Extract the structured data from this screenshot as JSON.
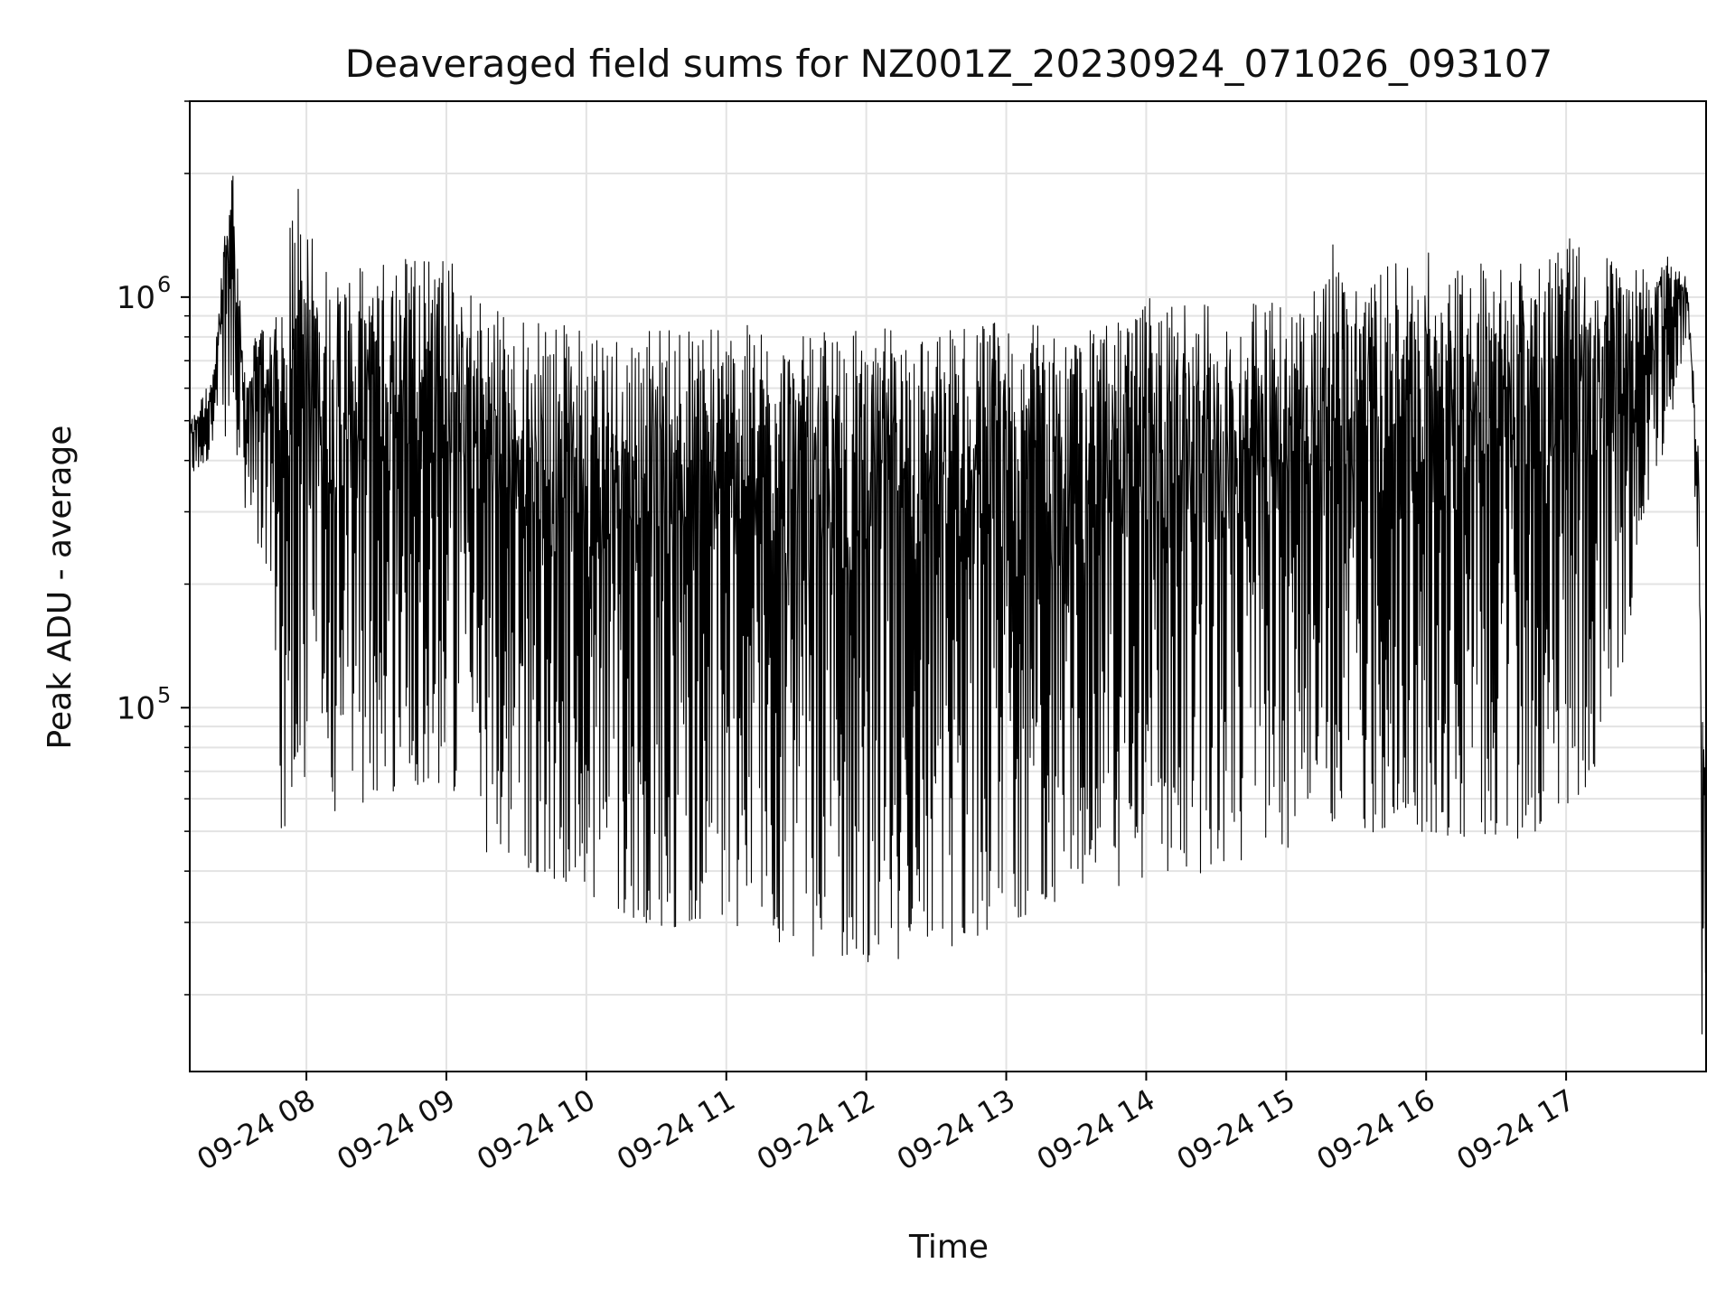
{
  "chart_data": {
    "type": "line",
    "title": "Deaveraged field sums for NZ001Z_20230924_071026_093107",
    "xlabel": "Time",
    "ylabel": "Peak ADU - average",
    "yscale": "log",
    "ylim": [
      13000,
      3000000
    ],
    "xlim": [
      "2023-09-24 07:10",
      "2023-09-24 18:00"
    ],
    "grid": true,
    "line_color": "#000000",
    "grid_color": "#e3e3e3",
    "x_ticks": [
      {
        "value": "2023-09-24 08:00",
        "label": "09-24 08"
      },
      {
        "value": "2023-09-24 09:00",
        "label": "09-24 09"
      },
      {
        "value": "2023-09-24 10:00",
        "label": "09-24 10"
      },
      {
        "value": "2023-09-24 11:00",
        "label": "09-24 11"
      },
      {
        "value": "2023-09-24 12:00",
        "label": "09-24 12"
      },
      {
        "value": "2023-09-24 13:00",
        "label": "09-24 13"
      },
      {
        "value": "2023-09-24 14:00",
        "label": "09-24 14"
      },
      {
        "value": "2023-09-24 15:00",
        "label": "09-24 15"
      },
      {
        "value": "2023-09-24 16:00",
        "label": "09-24 16"
      },
      {
        "value": "2023-09-24 17:00",
        "label": "09-24 17"
      }
    ],
    "y_major_ticks": [
      {
        "value": 100000,
        "base": "10",
        "exp": "5"
      },
      {
        "value": 1000000,
        "base": "10",
        "exp": "6"
      }
    ],
    "y_minor_ticks": [
      20000,
      30000,
      40000,
      50000,
      60000,
      70000,
      80000,
      90000,
      200000,
      300000,
      400000,
      500000,
      600000,
      700000,
      800000,
      900000,
      2000000,
      3000000
    ],
    "series": [
      {
        "envelope": [
          {
            "t": "2023-09-24 07:10",
            "low": 350000,
            "high": 500000
          },
          {
            "t": "2023-09-24 07:20",
            "low": 420000,
            "high": 650000
          },
          {
            "t": "2023-09-24 07:28",
            "low": 480000,
            "high": 2400000
          },
          {
            "t": "2023-09-24 07:33",
            "low": 300000,
            "high": 700000
          },
          {
            "t": "2023-09-24 07:45",
            "low": 200000,
            "high": 950000
          },
          {
            "t": "2023-09-24 07:50",
            "low": 40000,
            "high": 900000
          },
          {
            "t": "2023-09-24 07:55",
            "low": 70000,
            "high": 2100000
          },
          {
            "t": "2023-09-24 08:10",
            "low": 55000,
            "high": 1150000
          },
          {
            "t": "2023-09-24 08:30",
            "low": 60000,
            "high": 1200000
          },
          {
            "t": "2023-09-24 08:45",
            "low": 65000,
            "high": 1350000
          },
          {
            "t": "2023-09-24 09:00",
            "low": 65000,
            "high": 1300000
          },
          {
            "t": "2023-09-24 09:15",
            "low": 45000,
            "high": 1000000
          },
          {
            "t": "2023-09-24 09:30",
            "low": 42000,
            "high": 900000
          },
          {
            "t": "2023-09-24 10:00",
            "low": 35000,
            "high": 850000
          },
          {
            "t": "2023-09-24 10:30",
            "low": 29000,
            "high": 850000
          },
          {
            "t": "2023-09-24 11:00",
            "low": 30000,
            "high": 880000
          },
          {
            "t": "2023-09-24 11:30",
            "low": 25000,
            "high": 800000
          },
          {
            "t": "2023-09-24 12:00",
            "low": 24000,
            "high": 850000
          },
          {
            "t": "2023-09-24 12:30",
            "low": 25000,
            "high": 850000
          },
          {
            "t": "2023-09-24 13:00",
            "low": 30000,
            "high": 900000
          },
          {
            "t": "2023-09-24 13:30",
            "low": 35000,
            "high": 800000
          },
          {
            "t": "2023-09-24 14:00",
            "low": 38000,
            "high": 1000000
          },
          {
            "t": "2023-09-24 14:30",
            "low": 40000,
            "high": 950000
          },
          {
            "t": "2023-09-24 15:00",
            "low": 45000,
            "high": 1000000
          },
          {
            "t": "2023-09-24 15:10",
            "low": 55000,
            "high": 1050000
          },
          {
            "t": "2023-09-24 15:20",
            "low": 52000,
            "high": 1400000
          },
          {
            "t": "2023-09-24 15:30",
            "low": 50000,
            "high": 1100000
          },
          {
            "t": "2023-09-24 16:00",
            "low": 48000,
            "high": 1300000
          },
          {
            "t": "2023-09-24 16:30",
            "low": 48000,
            "high": 1200000
          },
          {
            "t": "2023-09-24 17:00",
            "low": 48000,
            "high": 1400000
          },
          {
            "t": "2023-09-24 17:18",
            "low": 75000,
            "high": 1300000
          },
          {
            "t": "2023-09-24 17:35",
            "low": 300000,
            "high": 1150000
          },
          {
            "t": "2023-09-24 17:45",
            "low": 500000,
            "high": 1300000
          },
          {
            "t": "2023-09-24 17:52",
            "low": 800000,
            "high": 1100000
          },
          {
            "t": "2023-09-24 17:57",
            "low": 200000,
            "high": 400000
          },
          {
            "t": "2023-09-24 17:58",
            "low": 15000,
            "high": 140000
          },
          {
            "t": "2023-09-24 18:00",
            "low": 20000,
            "high": 60000
          }
        ]
      }
    ]
  }
}
